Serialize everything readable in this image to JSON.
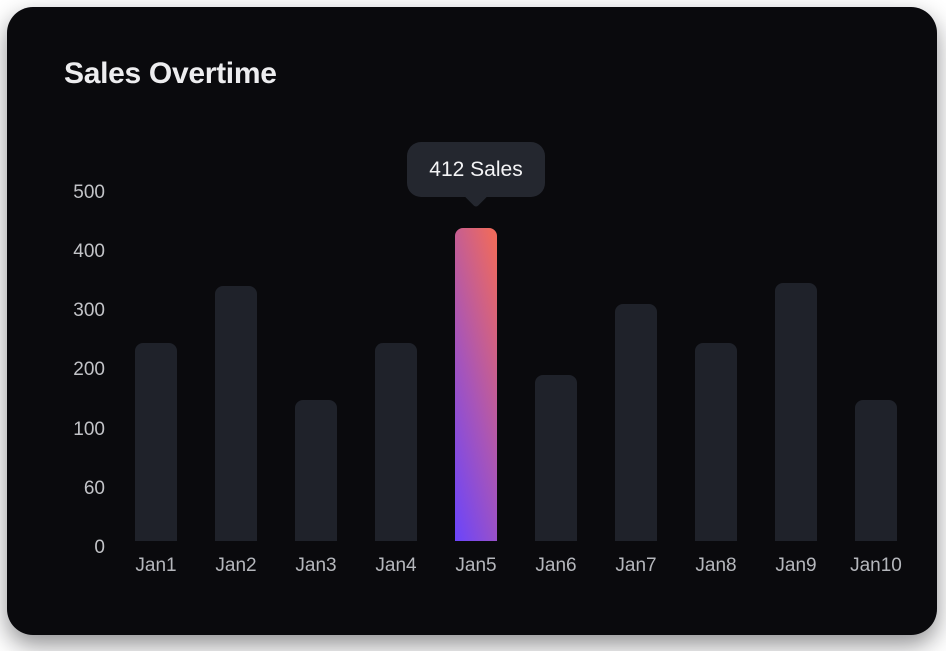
{
  "card": {
    "title": "Sales Overtime",
    "background": "#0a0a0d"
  },
  "tooltip": {
    "label": "412 Sales"
  },
  "chart_data": {
    "type": "bar",
    "title": "Sales Overtime",
    "categories": [
      "Jan1",
      "Jan2",
      "Jan3",
      "Jan4",
      "Jan5",
      "Jan6",
      "Jan7",
      "Jan8",
      "Jan9",
      "Jan10"
    ],
    "values": [
      260,
      335,
      185,
      260,
      412,
      218,
      312,
      260,
      340,
      185
    ],
    "highlighted_index": 4,
    "highlighted_value": 412,
    "highlight_tooltip": "412 Sales",
    "y_ticks": [
      "500",
      "400",
      "300",
      "200",
      "100",
      "60",
      "0"
    ],
    "ylim": [
      0,
      500
    ],
    "xlabel": "",
    "ylabel": "",
    "grid": false,
    "legend_position": "none",
    "colors": {
      "bar": "#1f222a",
      "highlight_gradient_top_right": "#ee6a5e",
      "highlight_gradient_bottom_left": "#6d45f9",
      "card_background": "#0a0a0d",
      "page_background": "#ffffff",
      "tooltip_background": "#24272f",
      "title_text": "#ededef",
      "axis_text": "#b5b7bc"
    }
  }
}
